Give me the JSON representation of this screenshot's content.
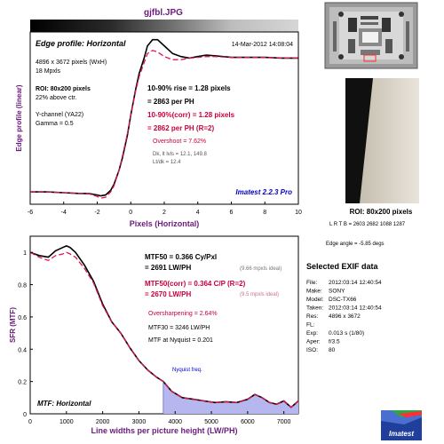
{
  "page": {
    "filename": "gjfbl.JPG",
    "edge_angle": "Edge angle = -5.85 degs",
    "roi_caption": "ROI: 80x200 pixels",
    "roi_coords": "L R T B = 2603 2682  1088 1287"
  },
  "colors": {
    "edge_line": "#000000",
    "corr_line": "#e0144c",
    "accent_text": "#c8003c",
    "title_purple": "#6a1b7d",
    "nyquist_fill": "#b7b7f0",
    "blue_text": "#0000c8"
  },
  "exif": {
    "heading": "Selected EXIF data",
    "rows": [
      {
        "label": "File:",
        "value": "2012:03:14 12:40:54"
      },
      {
        "label": "Make:",
        "value": "SONY"
      },
      {
        "label": "Model:",
        "value": "DSC-TX66"
      },
      {
        "label": "Taken:",
        "value": "2012:03:14 12:40:54"
      },
      {
        "label": "Res:",
        "value": "4896 x 3672"
      },
      {
        "label": "FL:",
        "value": ""
      },
      {
        "label": "Exp:",
        "value": "0.013 s  (1/80)"
      },
      {
        "label": "Aper:",
        "value": "f/3.5"
      },
      {
        "label": "ISO:",
        "value": "80"
      }
    ]
  },
  "logo_text": "Imatest",
  "chart_data": [
    {
      "type": "line",
      "title": "Edge profile: Horizontal",
      "date": "14-Mar-2012 14:08:04",
      "xlabel": "Pixels (Horizontal)",
      "ylabel": "Edge profile (linear)",
      "xlim": [
        -6,
        10
      ],
      "xticks": [
        "-6",
        "-4",
        "-2",
        "0",
        "2",
        "4",
        "6",
        "8",
        "10"
      ],
      "grid": false,
      "info_lines": [
        "4896 x 3672 pixels (WxH)",
        "18 Mpxls"
      ],
      "roi_lines": [
        "ROI: 80x200 pixels",
        "22% above ctr."
      ],
      "channel_lines": [
        "Y-channel  (YA22)",
        "Gamma = 0.5"
      ],
      "results": {
        "rise": "10-90% rise = 1.28 pixels",
        "rise_ph": "= 2863 per PH",
        "rise_corr": "10-90%(corr) = 1.28 pixels",
        "rise_corr_ph": "= 2862 per PH   (R=2)",
        "overshoot": "Overshoot = 7.62%",
        "dk_lvls": "Dk, lt lvls = 12.1, 149.8",
        "lt_dk": "Lt/dk = 12.4"
      },
      "version": "Imatest 2.2.3 Pro",
      "series": [
        {
          "x": [
            -6,
            -5,
            -4,
            -3,
            -2.5,
            -2,
            -1.8,
            -1.5,
            -1.2,
            -1,
            -0.7,
            -0.5,
            -0.2,
            0,
            0.3,
            0.5,
            0.8,
            1,
            1.3,
            1.6,
            2,
            2.5,
            3,
            3.5,
            4,
            4.5,
            5,
            6,
            7,
            8,
            9,
            10
          ],
          "y": [
            0.08,
            0.08,
            0.075,
            0.07,
            0.07,
            0.06,
            0.055,
            0.06,
            0.09,
            0.13,
            0.22,
            0.3,
            0.45,
            0.58,
            0.75,
            0.85,
            0.95,
            1.03,
            1.07,
            1.07,
            1.03,
            0.98,
            0.96,
            0.95,
            0.96,
            0.97,
            0.965,
            0.955,
            0.955,
            0.955,
            0.95,
            0.95
          ]
        },
        {
          "x": [
            -6,
            -5,
            -4,
            -3,
            -2.5,
            -2,
            -1.8,
            -1.5,
            -1.2,
            -1,
            -0.7,
            -0.5,
            -0.2,
            0,
            0.3,
            0.5,
            0.8,
            1,
            1.3,
            1.6,
            2,
            2.5,
            3,
            3.5,
            4,
            4.5,
            5,
            6,
            7,
            8,
            9,
            10
          ],
          "y": [
            0.08,
            0.08,
            0.075,
            0.07,
            0.068,
            0.05,
            0.04,
            0.045,
            0.08,
            0.12,
            0.22,
            0.31,
            0.46,
            0.58,
            0.74,
            0.83,
            0.92,
            0.98,
            1.0,
            0.99,
            0.96,
            0.94,
            0.94,
            0.95,
            0.955,
            0.96,
            0.96,
            0.955,
            0.955,
            0.955,
            0.95,
            0.95
          ]
        }
      ]
    },
    {
      "type": "line",
      "title": "MTF: Horizontal",
      "xlabel": "Line widths per picture height (LW/PH)",
      "ylabel": "SFR (MTF)",
      "xlim": [
        0,
        7400
      ],
      "ylim": [
        0,
        1.1
      ],
      "xticks": [
        "0",
        "1000",
        "2000",
        "3000",
        "4000",
        "5000",
        "6000",
        "7000"
      ],
      "yticks": [
        "0",
        "0.2",
        "0.4",
        "0.6",
        "0.8",
        "1"
      ],
      "grid": false,
      "nyquist_label": "Nyquist freq.",
      "nyquist_x": 3672,
      "results": {
        "mtf50": "MTF50 = 0.366 Cy/Pxl",
        "mtf50_lw": "= 2691 LW/PH",
        "mtf50_ideal": "(9.66 mpxls ideal)",
        "mtf50_corr": "MTF50(corr) = 0.364 C/P  (R=2)",
        "mtf50_corr_lw": "= 2670 LW/PH",
        "mtf50_corr_ideal": "(9.5 mpxls ideal)",
        "oversharpening": "Oversharpening = 2.64%",
        "mtf30": "MTF30 = 3246 LW/PH",
        "mtf_nyquist": "MTF at Nyquist = 0.201"
      },
      "series": [
        {
          "x": [
            0,
            250,
            500,
            700,
            900,
            1000,
            1100,
            1250,
            1500,
            1750,
            2000,
            2250,
            2500,
            2750,
            3000,
            3250,
            3500,
            3672,
            3900,
            4200,
            4500,
            4800,
            5100,
            5400,
            5700,
            6000,
            6200,
            6400,
            6600,
            6800,
            7000,
            7200,
            7400
          ],
          "y": [
            1.0,
            0.98,
            0.97,
            1.01,
            1.03,
            1.04,
            1.03,
            1.0,
            0.92,
            0.82,
            0.68,
            0.57,
            0.5,
            0.41,
            0.33,
            0.27,
            0.225,
            0.2,
            0.14,
            0.1,
            0.09,
            0.08,
            0.07,
            0.075,
            0.07,
            0.09,
            0.12,
            0.1,
            0.07,
            0.06,
            0.08,
            0.04,
            0.08
          ]
        },
        {
          "x": [
            0,
            250,
            500,
            700,
            900,
            1000,
            1100,
            1250,
            1500,
            1750,
            2000,
            2250,
            2500,
            2750,
            3000,
            3250,
            3500,
            3672,
            3900,
            4200,
            4500,
            4800,
            5100,
            5400,
            5700,
            6000,
            6200,
            6400,
            6600,
            6800,
            7000,
            7200,
            7400
          ],
          "y": [
            1.0,
            0.97,
            0.95,
            0.98,
            0.99,
            1.0,
            0.99,
            0.97,
            0.9,
            0.81,
            0.67,
            0.57,
            0.5,
            0.41,
            0.33,
            0.27,
            0.225,
            0.2,
            0.14,
            0.1,
            0.09,
            0.08,
            0.07,
            0.075,
            0.07,
            0.09,
            0.12,
            0.1,
            0.07,
            0.06,
            0.08,
            0.04,
            0.08
          ]
        }
      ]
    }
  ]
}
